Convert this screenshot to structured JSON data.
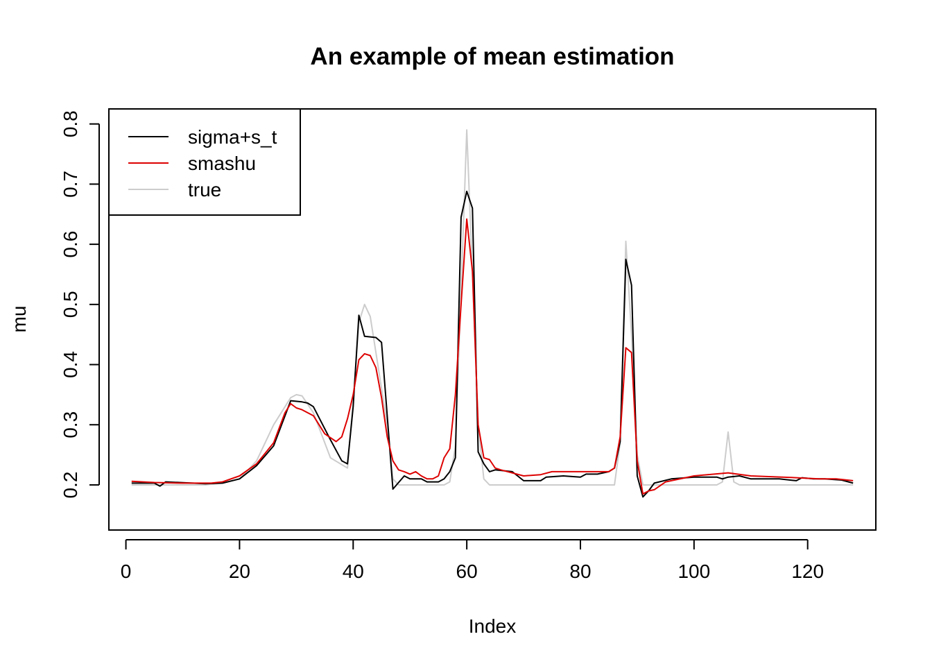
{
  "chart_data": {
    "type": "line",
    "title": "An example of mean estimation",
    "xlabel": "Index",
    "ylabel": "mu",
    "xlim": [
      -3,
      132
    ],
    "ylim": [
      0.125,
      0.825
    ],
    "x_ticks": [
      0,
      20,
      40,
      60,
      80,
      100,
      120
    ],
    "y_ticks": [
      0.2,
      0.3,
      0.4,
      0.5,
      0.6,
      0.7,
      0.8
    ],
    "x_tick_labels": [
      "0",
      "20",
      "40",
      "60",
      "80",
      "100",
      "120"
    ],
    "y_tick_labels": [
      "0.2",
      "0.3",
      "0.4",
      "0.5",
      "0.6",
      "0.7",
      "0.8"
    ],
    "legend_position": "top-left",
    "grid": false,
    "series": [
      {
        "name": "true",
        "color": "#cccccc",
        "x": [
          1,
          14,
          17,
          20,
          23,
          26,
          29,
          30,
          31,
          33,
          36,
          39,
          40,
          41,
          42,
          43,
          44,
          46,
          47,
          48,
          55,
          56,
          57,
          58,
          59,
          60,
          61,
          62,
          63,
          64,
          85,
          86,
          87,
          88,
          89,
          90,
          91,
          92,
          104,
          105,
          106,
          107,
          108,
          128
        ],
        "values": [
          0.2,
          0.2,
          0.203,
          0.21,
          0.24,
          0.3,
          0.345,
          0.35,
          0.348,
          0.32,
          0.245,
          0.228,
          0.34,
          0.47,
          0.5,
          0.48,
          0.42,
          0.3,
          0.21,
          0.2,
          0.2,
          0.2,
          0.205,
          0.265,
          0.52,
          0.79,
          0.55,
          0.3,
          0.21,
          0.2,
          0.2,
          0.2,
          0.27,
          0.605,
          0.45,
          0.25,
          0.2,
          0.2,
          0.2,
          0.205,
          0.288,
          0.205,
          0.2,
          0.2
        ]
      },
      {
        "name": "sigma+s_t",
        "color": "#000000",
        "x": [
          1,
          5,
          6,
          7,
          14,
          17,
          20,
          23,
          26,
          29,
          31,
          32,
          33,
          36,
          38,
          39,
          40,
          41,
          42,
          44,
          45,
          47,
          49,
          50,
          52,
          53,
          54,
          55,
          56,
          57,
          58,
          59,
          60,
          61,
          62,
          63,
          64,
          65,
          67,
          68,
          70,
          73,
          74,
          77,
          80,
          81,
          83,
          85,
          86,
          87,
          88,
          89,
          90,
          91,
          92,
          93,
          96,
          100,
          104,
          105,
          106,
          108,
          110,
          115,
          118,
          119,
          121,
          123,
          126,
          128
        ],
        "values": [
          0.203,
          0.203,
          0.198,
          0.205,
          0.202,
          0.203,
          0.21,
          0.232,
          0.265,
          0.34,
          0.338,
          0.336,
          0.33,
          0.275,
          0.24,
          0.235,
          0.33,
          0.482,
          0.447,
          0.445,
          0.437,
          0.193,
          0.215,
          0.21,
          0.21,
          0.205,
          0.205,
          0.205,
          0.21,
          0.222,
          0.245,
          0.645,
          0.688,
          0.66,
          0.255,
          0.235,
          0.222,
          0.225,
          0.223,
          0.222,
          0.207,
          0.207,
          0.213,
          0.215,
          0.213,
          0.218,
          0.218,
          0.222,
          0.228,
          0.272,
          0.575,
          0.532,
          0.215,
          0.18,
          0.19,
          0.203,
          0.21,
          0.213,
          0.213,
          0.21,
          0.213,
          0.215,
          0.21,
          0.21,
          0.207,
          0.212,
          0.21,
          0.21,
          0.208,
          0.203
        ]
      },
      {
        "name": "smashu",
        "color": "#dd0000",
        "x": [
          1,
          5,
          10,
          15,
          17,
          20,
          23,
          26,
          28,
          29,
          30,
          31,
          33,
          35,
          37,
          38,
          39,
          40,
          41,
          42,
          43,
          44,
          45,
          46,
          47,
          48,
          49,
          50,
          51,
          52,
          53,
          54,
          55,
          56,
          57,
          58,
          59,
          60,
          61,
          62,
          63,
          64,
          65,
          66,
          70,
          73,
          75,
          78,
          80,
          85,
          86,
          87,
          88,
          89,
          90,
          91,
          92,
          93,
          95,
          100,
          106,
          110,
          118,
          122,
          125,
          128
        ],
        "values": [
          0.206,
          0.204,
          0.203,
          0.203,
          0.205,
          0.215,
          0.235,
          0.27,
          0.32,
          0.335,
          0.328,
          0.325,
          0.315,
          0.285,
          0.272,
          0.28,
          0.31,
          0.35,
          0.408,
          0.418,
          0.415,
          0.395,
          0.345,
          0.28,
          0.24,
          0.225,
          0.222,
          0.218,
          0.222,
          0.215,
          0.21,
          0.21,
          0.215,
          0.245,
          0.26,
          0.35,
          0.5,
          0.642,
          0.555,
          0.3,
          0.245,
          0.242,
          0.228,
          0.225,
          0.215,
          0.217,
          0.222,
          0.222,
          0.222,
          0.222,
          0.228,
          0.28,
          0.428,
          0.42,
          0.24,
          0.185,
          0.19,
          0.192,
          0.205,
          0.215,
          0.22,
          0.215,
          0.212,
          0.21,
          0.21,
          0.207
        ]
      }
    ]
  }
}
